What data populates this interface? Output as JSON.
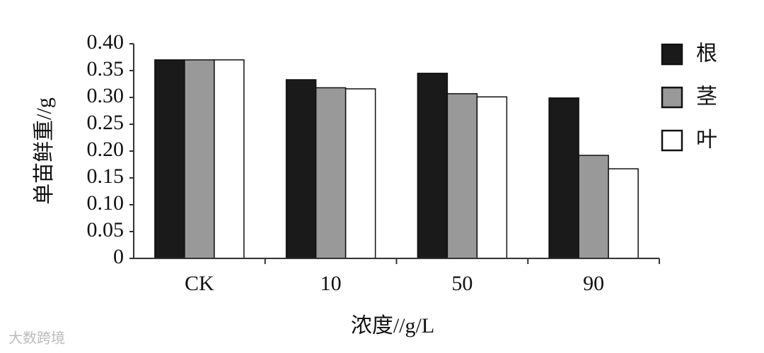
{
  "chart_data": {
    "type": "bar",
    "y_label": "单苗鲜重//g",
    "x_label": "浓度//g/L",
    "watermark": "大数跨境",
    "categories": [
      "CK",
      "10",
      "50",
      "90"
    ],
    "series": [
      {
        "name": "根",
        "color": "#1a1a1a",
        "values": [
          0.37,
          0.333,
          0.345,
          0.299
        ]
      },
      {
        "name": "茎",
        "color": "#999999",
        "values": [
          0.37,
          0.318,
          0.307,
          0.192
        ]
      },
      {
        "name": "叶",
        "color": "#ffffff",
        "values": [
          0.37,
          0.316,
          0.301,
          0.167
        ]
      }
    ],
    "ylim": [
      0,
      0.4
    ],
    "yticks": [
      0,
      0.05,
      {
        "value": 0.1,
        "label": "0.10"
      },
      0.15,
      {
        "value": 0.2,
        "label": "0.20"
      },
      0.25,
      {
        "value": 0.3,
        "label": "0.30"
      },
      0.35,
      {
        "value": 0.4,
        "label": "0.40"
      }
    ],
    "legend": "right"
  }
}
